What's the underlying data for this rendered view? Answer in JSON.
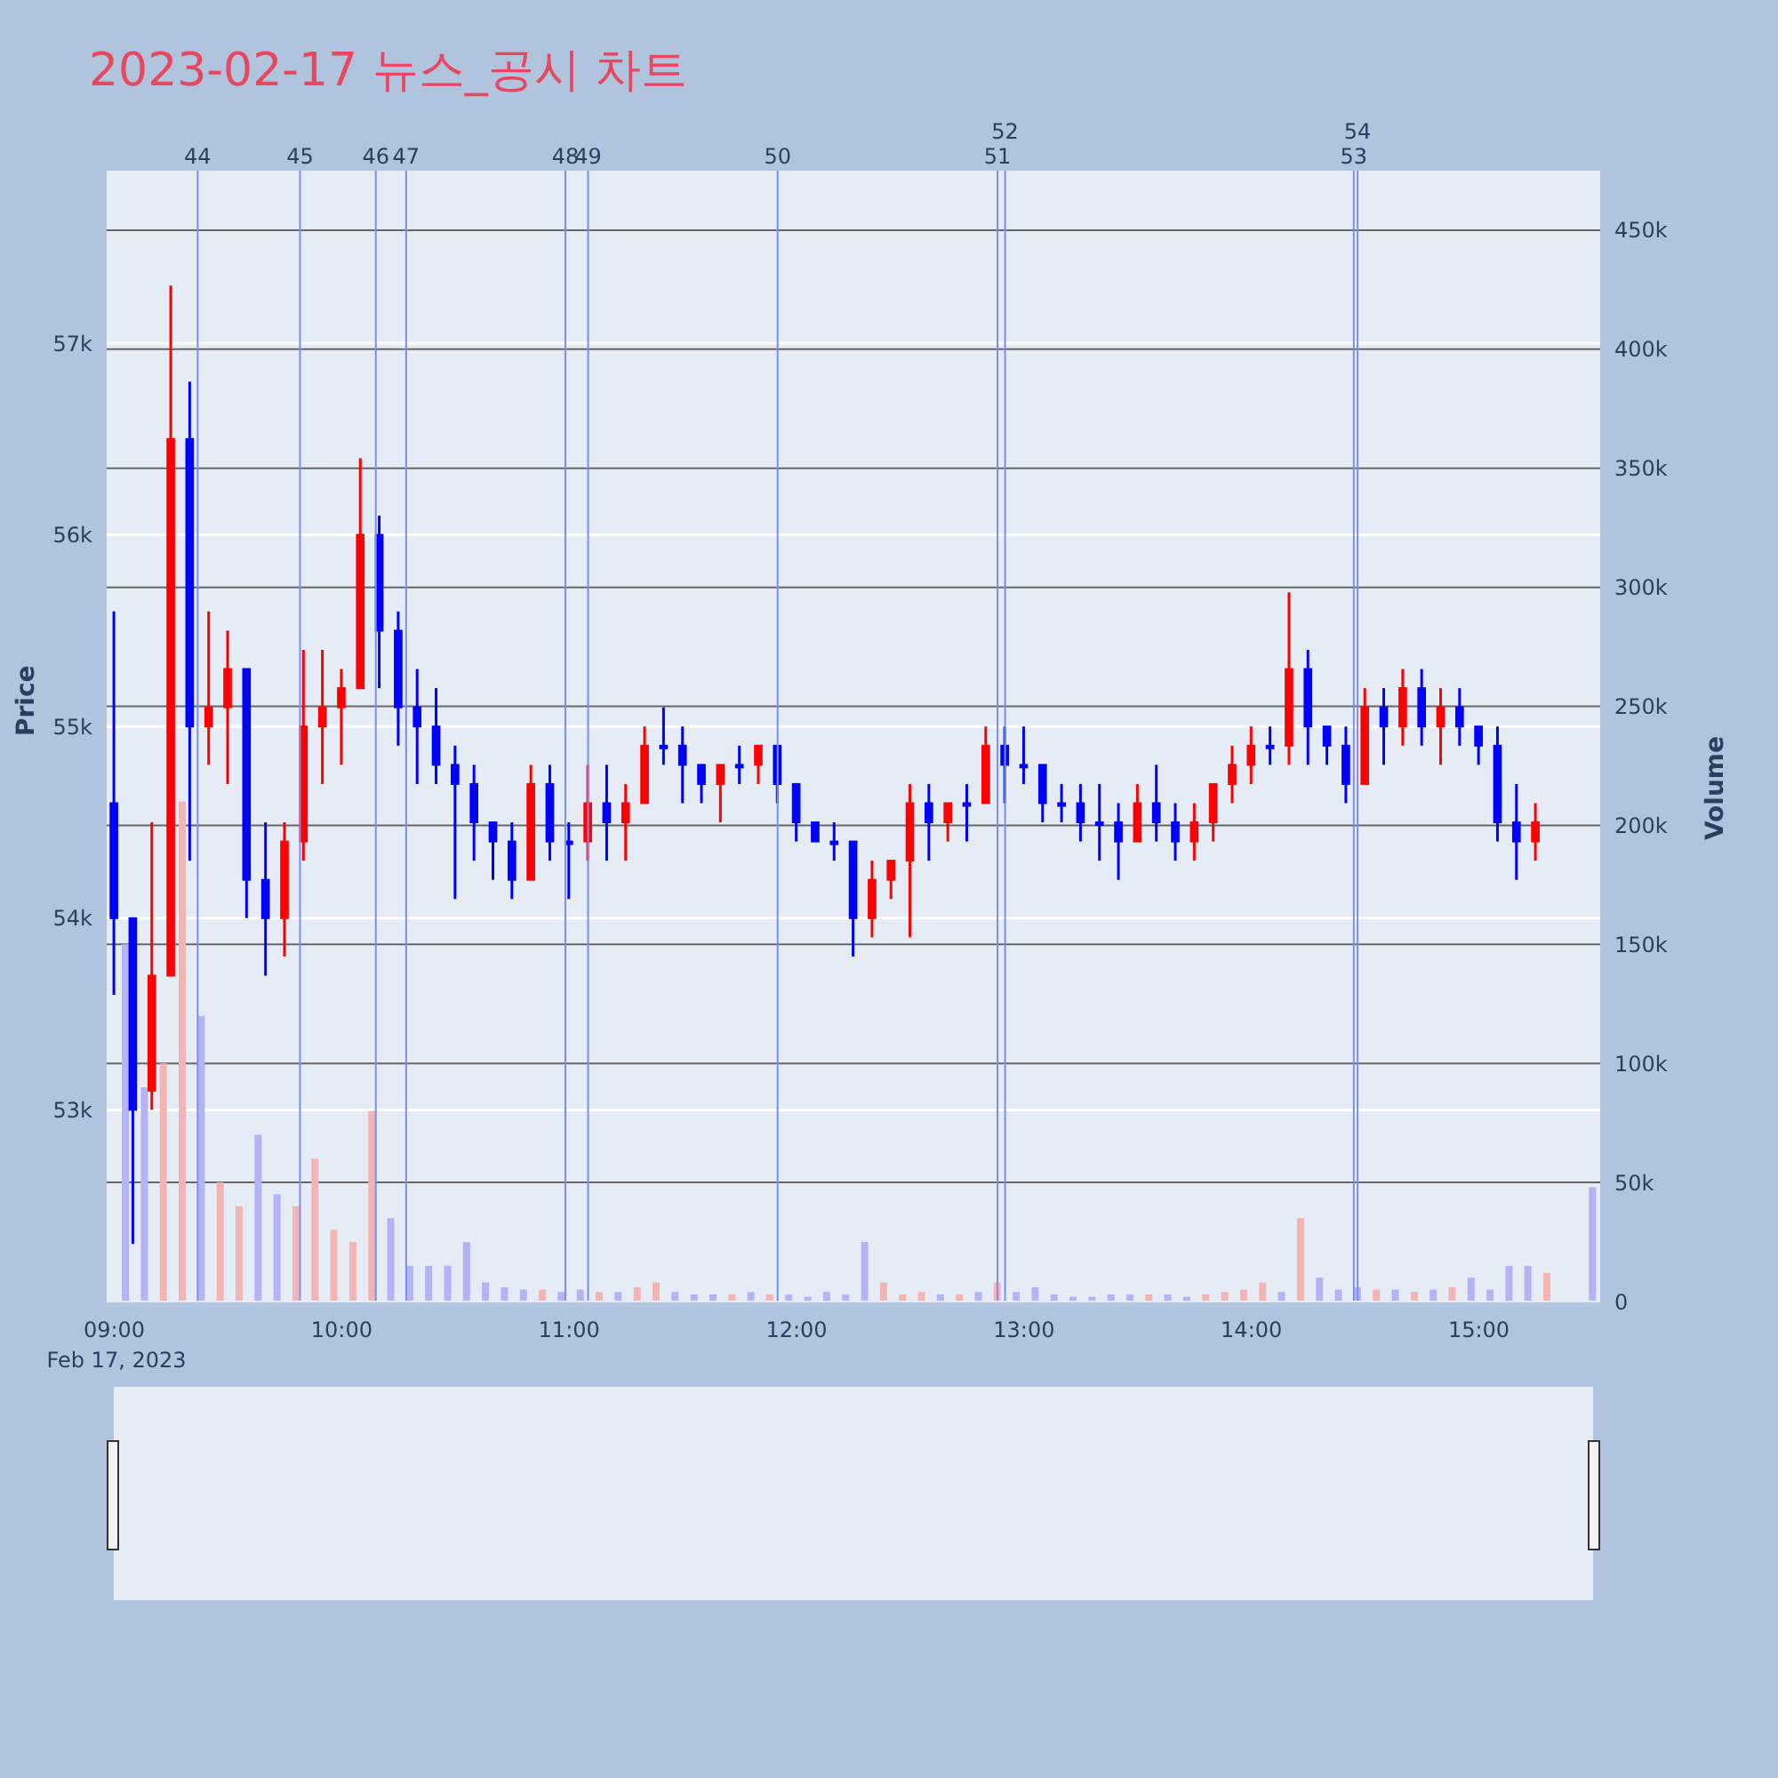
{
  "chart_data": {
    "type": "candlestick",
    "title": "2023-02-17 뉴스_공시 차트",
    "ylabel": "Price",
    "y2label": "Volume",
    "xlim": [
      "2023-02-17T08:58",
      "2023-02-17T15:32"
    ],
    "xticks": [
      {
        "value": "2023-02-17T09:00",
        "label": "09:00\nFeb 17, 2023"
      },
      {
        "value": "2023-02-17T10:00",
        "label": "10:00"
      },
      {
        "value": "2023-02-17T11:00",
        "label": "11:00"
      },
      {
        "value": "2023-02-17T12:00",
        "label": "12:00"
      },
      {
        "value": "2023-02-17T13:00",
        "label": "13:00"
      },
      {
        "value": "2023-02-17T14:00",
        "label": "14:00"
      },
      {
        "value": "2023-02-17T15:00",
        "label": "15:00"
      }
    ],
    "ylim": [
      52000,
      57900
    ],
    "yticks": [
      {
        "value": 53000,
        "label": "53k"
      },
      {
        "value": 54000,
        "label": "54k"
      },
      {
        "value": 55000,
        "label": "55k"
      },
      {
        "value": 56000,
        "label": "56k"
      },
      {
        "value": 57000,
        "label": "57k"
      }
    ],
    "y2lim": [
      0,
      475000
    ],
    "y2ticks": [
      0,
      {
        "value": 50000,
        "label": "50k"
      },
      {
        "value": 100000,
        "label": "100k"
      },
      {
        "value": 150000,
        "label": "150k"
      },
      {
        "value": 200000,
        "label": "200k"
      },
      {
        "value": 250000,
        "label": "250k"
      },
      {
        "value": 300000,
        "label": "300k"
      },
      {
        "value": 350000,
        "label": "350k"
      },
      {
        "value": 400000,
        "label": "400k"
      },
      {
        "value": 450000,
        "label": "450k"
      }
    ],
    "grid": "y",
    "series": [
      {
        "type": "candlestick",
        "x": [
          "2023-02-17T09:00",
          "2023-02-17T09:05",
          "2023-02-17T09:10",
          "2023-02-17T09:15",
          "2023-02-17T09:20",
          "2023-02-17T09:25",
          "2023-02-17T09:30",
          "2023-02-17T09:35",
          "2023-02-17T09:40",
          "2023-02-17T09:45",
          "2023-02-17T09:50",
          "2023-02-17T09:55",
          "2023-02-17T10:00",
          "2023-02-17T10:05",
          "2023-02-17T10:10",
          "2023-02-17T10:15",
          "2023-02-17T10:20",
          "2023-02-17T10:25",
          "2023-02-17T10:30",
          "2023-02-17T10:35",
          "2023-02-17T10:40",
          "2023-02-17T10:45",
          "2023-02-17T10:50",
          "2023-02-17T10:55",
          "2023-02-17T11:00",
          "2023-02-17T11:05",
          "2023-02-17T11:10",
          "2023-02-17T11:15",
          "2023-02-17T11:20",
          "2023-02-17T11:25",
          "2023-02-17T11:30",
          "2023-02-17T11:35",
          "2023-02-17T11:40",
          "2023-02-17T11:45",
          "2023-02-17T11:50",
          "2023-02-17T11:55",
          "2023-02-17T12:00",
          "2023-02-17T12:05",
          "2023-02-17T12:10",
          "2023-02-17T12:15",
          "2023-02-17T12:20",
          "2023-02-17T12:25",
          "2023-02-17T12:30",
          "2023-02-17T12:35",
          "2023-02-17T12:40",
          "2023-02-17T12:45",
          "2023-02-17T12:50",
          "2023-02-17T12:55",
          "2023-02-17T13:00",
          "2023-02-17T13:05",
          "2023-02-17T13:10",
          "2023-02-17T13:15",
          "2023-02-17T13:20",
          "2023-02-17T13:25",
          "2023-02-17T13:30",
          "2023-02-17T13:35",
          "2023-02-17T13:40",
          "2023-02-17T13:45",
          "2023-02-17T13:50",
          "2023-02-17T13:55",
          "2023-02-17T14:00",
          "2023-02-17T14:05",
          "2023-02-17T14:10",
          "2023-02-17T14:15",
          "2023-02-17T14:20",
          "2023-02-17T14:25",
          "2023-02-17T14:30",
          "2023-02-17T14:35",
          "2023-02-17T14:40",
          "2023-02-17T14:45",
          "2023-02-17T14:50",
          "2023-02-17T14:55",
          "2023-02-17T15:00",
          "2023-02-17T15:05",
          "2023-02-17T15:10",
          "2023-02-17T15:15"
        ],
        "ohlc": [
          [
            54600,
            55600,
            53600,
            54000
          ],
          [
            54000,
            54000,
            52300,
            53000
          ],
          [
            53100,
            54500,
            53000,
            53700
          ],
          [
            53700,
            57300,
            53700,
            56500
          ],
          [
            56500,
            56800,
            54300,
            55000
          ],
          [
            55000,
            55600,
            54800,
            55100
          ],
          [
            55100,
            55500,
            54700,
            55300
          ],
          [
            55300,
            55300,
            54000,
            54200
          ],
          [
            54200,
            54500,
            53700,
            54000
          ],
          [
            54000,
            54500,
            53800,
            54400
          ],
          [
            54400,
            55400,
            54300,
            55000
          ],
          [
            55000,
            55400,
            54700,
            55100
          ],
          [
            55100,
            55300,
            54800,
            55200
          ],
          [
            55200,
            56400,
            55200,
            56000
          ],
          [
            56000,
            56100,
            55200,
            55500
          ],
          [
            55500,
            55600,
            54900,
            55100
          ],
          [
            55100,
            55300,
            54700,
            55000
          ],
          [
            55000,
            55200,
            54700,
            54800
          ],
          [
            54800,
            54900,
            54100,
            54700
          ],
          [
            54700,
            54800,
            54300,
            54500
          ],
          [
            54500,
            54500,
            54200,
            54400
          ],
          [
            54400,
            54500,
            54100,
            54200
          ],
          [
            54200,
            54800,
            54200,
            54700
          ],
          [
            54700,
            54800,
            54300,
            54400
          ],
          [
            54400,
            54500,
            54100,
            54400
          ],
          [
            54400,
            54800,
            54300,
            54600
          ],
          [
            54600,
            54800,
            54300,
            54500
          ],
          [
            54500,
            54700,
            54300,
            54600
          ],
          [
            54600,
            55000,
            54600,
            54900
          ],
          [
            54900,
            55100,
            54800,
            54900
          ],
          [
            54900,
            55000,
            54600,
            54800
          ],
          [
            54800,
            54800,
            54600,
            54700
          ],
          [
            54700,
            54800,
            54500,
            54800
          ],
          [
            54800,
            54900,
            54700,
            54800
          ],
          [
            54800,
            54900,
            54700,
            54900
          ],
          [
            54900,
            54900,
            54600,
            54700
          ],
          [
            54700,
            54700,
            54400,
            54500
          ],
          [
            54500,
            54500,
            54400,
            54400
          ],
          [
            54400,
            54500,
            54300,
            54400
          ],
          [
            54400,
            54400,
            53800,
            54000
          ],
          [
            54000,
            54300,
            53900,
            54200
          ],
          [
            54200,
            54300,
            54100,
            54300
          ],
          [
            54300,
            54700,
            53900,
            54600
          ],
          [
            54600,
            54700,
            54300,
            54500
          ],
          [
            54500,
            54600,
            54400,
            54600
          ],
          [
            54600,
            54700,
            54400,
            54600
          ],
          [
            54600,
            55000,
            54600,
            54900
          ],
          [
            54900,
            55000,
            54600,
            54800
          ],
          [
            54800,
            55000,
            54700,
            54800
          ],
          [
            54800,
            54800,
            54500,
            54600
          ],
          [
            54600,
            54700,
            54500,
            54600
          ],
          [
            54600,
            54700,
            54400,
            54500
          ],
          [
            54500,
            54700,
            54300,
            54500
          ],
          [
            54500,
            54600,
            54200,
            54400
          ],
          [
            54400,
            54700,
            54400,
            54600
          ],
          [
            54600,
            54800,
            54400,
            54500
          ],
          [
            54500,
            54600,
            54300,
            54400
          ],
          [
            54400,
            54600,
            54300,
            54500
          ],
          [
            54500,
            54700,
            54400,
            54700
          ],
          [
            54700,
            54900,
            54600,
            54800
          ],
          [
            54800,
            55000,
            54700,
            54900
          ],
          [
            54900,
            55000,
            54800,
            54900
          ],
          [
            54900,
            55700,
            54800,
            55300
          ],
          [
            55300,
            55400,
            54800,
            55000
          ],
          [
            55000,
            55000,
            54800,
            54900
          ],
          [
            54900,
            55000,
            54600,
            54700
          ],
          [
            54700,
            55200,
            54700,
            55100
          ],
          [
            55100,
            55200,
            54800,
            55000
          ],
          [
            55000,
            55300,
            54900,
            55200
          ],
          [
            55200,
            55300,
            54900,
            55000
          ],
          [
            55000,
            55200,
            54800,
            55100
          ],
          [
            55100,
            55200,
            54900,
            55000
          ],
          [
            55000,
            55000,
            54800,
            54900
          ],
          [
            54900,
            55000,
            54400,
            54500
          ],
          [
            54500,
            54700,
            54200,
            54400
          ],
          [
            54400,
            54600,
            54300,
            54500
          ]
        ],
        "colors": [
          "#0000ff",
          "#0000ff",
          "#ff0000",
          "#ff0000",
          "#0000ff",
          "#ff0000",
          "#ff0000",
          "#0000ff",
          "#0000ff",
          "#ff0000",
          "#ff0000",
          "#ff0000",
          "#ff0000",
          "#ff0000",
          "#0000ff",
          "#0000ff",
          "#0000ff",
          "#0000ff",
          "#0000ff",
          "#0000ff",
          "#0000ff",
          "#0000ff",
          "#ff0000",
          "#0000ff",
          "#0000ff",
          "#ff0000",
          "#0000ff",
          "#ff0000",
          "#ff0000",
          "#0000ff",
          "#0000ff",
          "#0000ff",
          "#ff0000",
          "#0000ff",
          "#ff0000",
          "#0000ff",
          "#0000ff",
          "#0000ff",
          "#0000ff",
          "#0000ff",
          "#ff0000",
          "#ff0000",
          "#ff0000",
          "#0000ff",
          "#ff0000",
          "#0000ff",
          "#ff0000",
          "#0000ff",
          "#0000ff",
          "#0000ff",
          "#0000ff",
          "#0000ff",
          "#0000ff",
          "#0000ff",
          "#ff0000",
          "#0000ff",
          "#0000ff",
          "#ff0000",
          "#ff0000",
          "#ff0000",
          "#ff0000",
          "#0000ff",
          "#ff0000",
          "#0000ff",
          "#0000ff",
          "#0000ff",
          "#ff0000",
          "#0000ff",
          "#ff0000",
          "#0000ff",
          "#ff0000",
          "#0000ff",
          "#0000ff",
          "#0000ff",
          "#0000ff",
          "#ff0000"
        ]
      },
      {
        "type": "bar",
        "axis": "y2",
        "x": [
          "2023-02-17T09:03",
          "2023-02-17T09:08",
          "2023-02-17T09:13",
          "2023-02-17T09:18",
          "2023-02-17T09:23",
          "2023-02-17T09:28",
          "2023-02-17T09:33",
          "2023-02-17T09:38",
          "2023-02-17T09:43",
          "2023-02-17T09:48",
          "2023-02-17T09:53",
          "2023-02-17T09:58",
          "2023-02-17T10:03",
          "2023-02-17T10:08",
          "2023-02-17T10:13",
          "2023-02-17T10:18",
          "2023-02-17T10:23",
          "2023-02-17T10:28",
          "2023-02-17T10:33",
          "2023-02-17T10:38",
          "2023-02-17T10:43",
          "2023-02-17T10:48",
          "2023-02-17T10:53",
          "2023-02-17T10:58",
          "2023-02-17T11:03",
          "2023-02-17T11:08",
          "2023-02-17T11:13",
          "2023-02-17T11:18",
          "2023-02-17T11:23",
          "2023-02-17T11:28",
          "2023-02-17T11:33",
          "2023-02-17T11:38",
          "2023-02-17T11:43",
          "2023-02-17T11:48",
          "2023-02-17T11:53",
          "2023-02-17T11:58",
          "2023-02-17T12:03",
          "2023-02-17T12:08",
          "2023-02-17T12:13",
          "2023-02-17T12:18",
          "2023-02-17T12:23",
          "2023-02-17T12:28",
          "2023-02-17T12:33",
          "2023-02-17T12:38",
          "2023-02-17T12:43",
          "2023-02-17T12:48",
          "2023-02-17T12:53",
          "2023-02-17T12:58",
          "2023-02-17T13:03",
          "2023-02-17T13:08",
          "2023-02-17T13:13",
          "2023-02-17T13:18",
          "2023-02-17T13:23",
          "2023-02-17T13:28",
          "2023-02-17T13:33",
          "2023-02-17T13:38",
          "2023-02-17T13:43",
          "2023-02-17T13:48",
          "2023-02-17T13:53",
          "2023-02-17T13:58",
          "2023-02-17T14:03",
          "2023-02-17T14:08",
          "2023-02-17T14:13",
          "2023-02-17T14:18",
          "2023-02-17T14:23",
          "2023-02-17T14:28",
          "2023-02-17T14:33",
          "2023-02-17T14:38",
          "2023-02-17T14:43",
          "2023-02-17T14:48",
          "2023-02-17T14:53",
          "2023-02-17T14:58",
          "2023-02-17T15:03",
          "2023-02-17T15:08",
          "2023-02-17T15:13",
          "2023-02-17T15:18",
          "2023-02-17T15:30"
        ],
        "values": [
          150000,
          90000,
          100000,
          210000,
          120000,
          50000,
          40000,
          70000,
          45000,
          40000,
          60000,
          30000,
          25000,
          80000,
          35000,
          15000,
          15000,
          15000,
          25000,
          8000,
          6000,
          5000,
          5000,
          4000,
          5000,
          4000,
          4000,
          6000,
          8000,
          4000,
          3000,
          3000,
          3000,
          4000,
          3000,
          3000,
          2000,
          4000,
          3000,
          25000,
          8000,
          3000,
          4000,
          3000,
          3000,
          4000,
          8000,
          4000,
          6000,
          3000,
          2000,
          2000,
          3000,
          3000,
          3000,
          3000,
          2000,
          3000,
          4000,
          5000,
          8000,
          4000,
          35000,
          10000,
          5000,
          6000,
          5000,
          5000,
          4000,
          5000,
          6000,
          10000,
          5000,
          15000,
          15000,
          12000,
          48000
        ],
        "colors": [
          "#b4b4f4",
          "#b4b4f4",
          "#f4b4b4",
          "#f4b4b4",
          "#b4b4f4",
          "#f4b4b4",
          "#f4b4b4",
          "#b4b4f4",
          "#b4b4f4",
          "#f4b4b4",
          "#f4b4b4",
          "#f4b4b4",
          "#f4b4b4",
          "#f4b4b4",
          "#b4b4f4",
          "#b4b4f4",
          "#b4b4f4",
          "#b4b4f4",
          "#b4b4f4",
          "#b4b4f4",
          "#b4b4f4",
          "#b4b4f4",
          "#f4b4b4",
          "#b4b4f4",
          "#b4b4f4",
          "#f4b4b4",
          "#b4b4f4",
          "#f4b4b4",
          "#f4b4b4",
          "#b4b4f4",
          "#b4b4f4",
          "#b4b4f4",
          "#f4b4b4",
          "#b4b4f4",
          "#f4b4b4",
          "#b4b4f4",
          "#b4b4f4",
          "#b4b4f4",
          "#b4b4f4",
          "#b4b4f4",
          "#f4b4b4",
          "#f4b4b4",
          "#f4b4b4",
          "#b4b4f4",
          "#f4b4b4",
          "#b4b4f4",
          "#f4b4b4",
          "#b4b4f4",
          "#b4b4f4",
          "#b4b4f4",
          "#b4b4f4",
          "#b4b4f4",
          "#b4b4f4",
          "#b4b4f4",
          "#f4b4b4",
          "#b4b4f4",
          "#b4b4f4",
          "#f4b4b4",
          "#f4b4b4",
          "#f4b4b4",
          "#f4b4b4",
          "#b4b4f4",
          "#f4b4b4",
          "#b4b4f4",
          "#b4b4f4",
          "#b4b4f4",
          "#f4b4b4",
          "#b4b4f4",
          "#f4b4b4",
          "#b4b4f4",
          "#f4b4b4",
          "#b4b4f4",
          "#b4b4f4",
          "#b4b4f4",
          "#b4b4f4",
          "#f4b4b4",
          "#b4b4f4"
        ]
      }
    ],
    "ref_lines": [
      {
        "axis": "x",
        "value": "2023-02-17T09:22",
        "label": "44",
        "color": "#7b8ff0"
      },
      {
        "axis": "x",
        "value": "2023-02-17T09:49",
        "label": "45",
        "color": "#7b8ff0"
      },
      {
        "axis": "x",
        "value": "2023-02-17T10:09",
        "label": "46",
        "color": "#7b8ff0"
      },
      {
        "axis": "x",
        "value": "2023-02-17T10:17",
        "label": "47",
        "color": "#7b8ff0"
      },
      {
        "axis": "x",
        "value": "2023-02-17T10:59",
        "label": "48",
        "color": "#7b8ff0"
      },
      {
        "axis": "x",
        "value": "2023-02-17T11:05",
        "label": "49",
        "color": "#7b8ff0"
      },
      {
        "axis": "x",
        "value": "2023-02-17T11:55",
        "label": "50",
        "color": "#7b8ff0"
      },
      {
        "axis": "x",
        "value": "2023-02-17T12:53",
        "label": "51",
        "color": "#7b8ff0"
      },
      {
        "axis": "x",
        "value": "2023-02-17T12:55",
        "label": "52",
        "color": "#7b8ff0"
      },
      {
        "axis": "x",
        "value": "2023-02-17T14:27",
        "label": "53",
        "color": "#7b8ff0"
      },
      {
        "axis": "x",
        "value": "2023-02-17T14:28",
        "label": "54",
        "color": "#7b8ff0"
      }
    ]
  }
}
